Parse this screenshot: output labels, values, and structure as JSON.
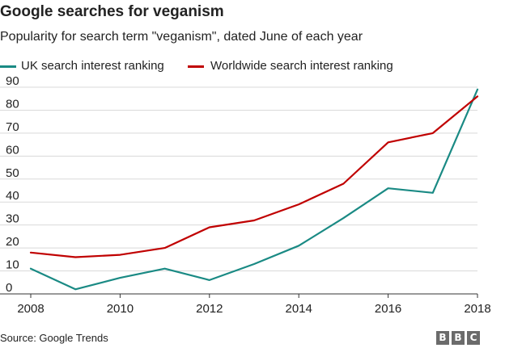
{
  "header": {
    "title": "Google searches for veganism",
    "subtitle": "Popularity for search term \"veganism\", dated June of each year"
  },
  "legend": [
    {
      "label": "UK search interest ranking",
      "color": "#1a8a84"
    },
    {
      "label": "Worldwide search interest ranking",
      "color": "#c00000"
    }
  ],
  "footer": {
    "source": "Source: Google Trends",
    "logo_letters": [
      "B",
      "B",
      "C"
    ]
  },
  "chart_data": {
    "type": "line",
    "title": "Google searches for veganism",
    "subtitle": "Popularity for search term \"veganism\", dated June of each year",
    "xlabel": "",
    "ylabel": "",
    "x": [
      2008,
      2009,
      2010,
      2011,
      2012,
      2013,
      2014,
      2015,
      2016,
      2017,
      2018
    ],
    "x_tick_labels": [
      "2008",
      "2010",
      "2012",
      "2014",
      "2016",
      "2018"
    ],
    "y_tick_labels": [
      "0",
      "10",
      "20",
      "30",
      "40",
      "50",
      "60",
      "70",
      "80",
      "90"
    ],
    "xlim": [
      2008,
      2018
    ],
    "ylim": [
      0,
      90
    ],
    "grid": true,
    "legend_position": "top-left",
    "series": [
      {
        "name": "UK search interest ranking",
        "color": "#1a8a84",
        "values": [
          11,
          2,
          7,
          11,
          6,
          13,
          21,
          33,
          46,
          44,
          89
        ]
      },
      {
        "name": "Worldwide search interest ranking",
        "color": "#c00000",
        "values": [
          18,
          16,
          17,
          20,
          29,
          32,
          39,
          48,
          66,
          70,
          86
        ]
      }
    ]
  }
}
